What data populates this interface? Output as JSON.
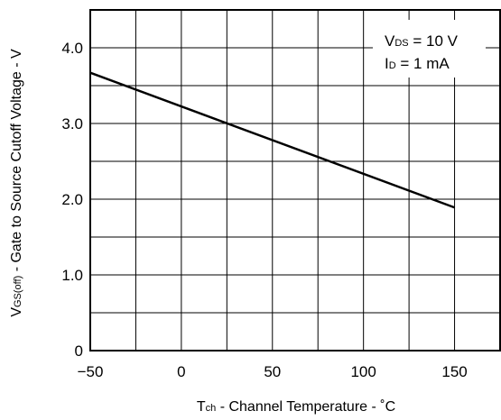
{
  "chart_data": {
    "type": "line",
    "title": "",
    "xlabel": {
      "main": "T",
      "sub": "ch",
      "rest": " - Channel Temperature - ˚C"
    },
    "ylabel": {
      "main": "V",
      "sub": "GS(off)",
      "rest": " - Gate to Source Cutoff Voltage - V"
    },
    "xlim": [
      -50,
      175
    ],
    "ylim": [
      0,
      4.5
    ],
    "x_ticks": [
      -50,
      0,
      50,
      100,
      150
    ],
    "y_ticks": [
      0,
      1.0,
      2.0,
      3.0,
      4.0
    ],
    "x_tick_labels": [
      "−50",
      "0",
      "50",
      "100",
      "150"
    ],
    "y_tick_labels": [
      "0",
      "1.0",
      "2.0",
      "3.0",
      "4.0"
    ],
    "x_grid_step": 25,
    "y_grid_step": 0.5,
    "grid": true,
    "legend_position": "top-right",
    "conditions": [
      {
        "main": "V",
        "sub": "DS",
        "rest": " = 10 V"
      },
      {
        "main": "I",
        "sub": "D",
        "rest": " = 1 mA"
      }
    ],
    "series": [
      {
        "x": [
          -50,
          150
        ],
        "y": [
          3.67,
          1.89
        ],
        "color": "#000000"
      }
    ]
  }
}
